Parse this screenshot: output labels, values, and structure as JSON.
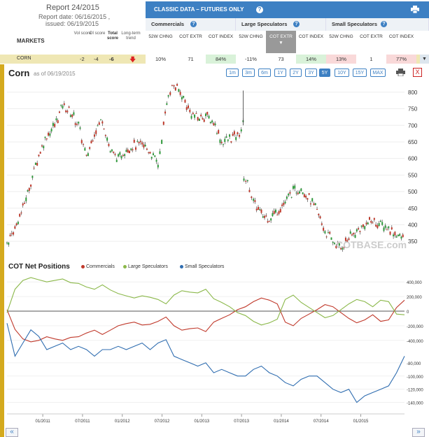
{
  "report": {
    "title": "Report 24/2015",
    "date_line": "Report date: 06/16/2015 ,",
    "issued_line": "issued: 06/19/2015"
  },
  "left_headers": {
    "markets": "MARKETS",
    "vol": "Vol score",
    "oi": "OI score",
    "total": "Total score",
    "trend": "Long-term trend"
  },
  "cot_header": {
    "title": "CLASSIC DATA – FUTURES ONLY",
    "groups": [
      "Commercials",
      "Large Speculators",
      "Small Speculators"
    ],
    "sub_headers": [
      "52W CHNG",
      "COT EXTR",
      "COT INDEX",
      "52W CHNG",
      "COT EXTR",
      "COT INDEX",
      "52W CHNG",
      "COT EXTR",
      "COT INDEX"
    ]
  },
  "corn_row": {
    "name": "CORN",
    "vol": "-2",
    "oi": "-4",
    "total": "-6",
    "values": [
      "10%",
      "71",
      "84%",
      "-11%",
      "73",
      "14%",
      "13%",
      "1",
      "77%"
    ],
    "cell_colors": [
      "#ffffff",
      "#ffffff",
      "#d9f2d9",
      "#ffffff",
      "#ffffff",
      "#d9f2d9",
      "#f9d9d9",
      "#ffffff",
      "#f9d9d9"
    ]
  },
  "chart_header": {
    "title": "Corn",
    "subtitle": "as of 06/19/2015",
    "zoom_buttons": [
      "1m",
      "3m",
      "6m",
      "1Y",
      "2Y",
      "3Y",
      "5Y",
      "10Y",
      "15Y",
      "MAX"
    ],
    "active_zoom": "5Y",
    "close_label": "X"
  },
  "cot_net": {
    "title": "COT Net Positions",
    "legend": [
      {
        "name": "Commercials",
        "color": "#c0392b"
      },
      {
        "name": "Large Speculators",
        "color": "#8bb84a"
      },
      {
        "name": "Small Speculators",
        "color": "#2f6db0"
      }
    ]
  },
  "nav": {
    "left": "«",
    "right": "»"
  },
  "watermark": "COTBASE.com",
  "chart_data": [
    {
      "type": "candlestick",
      "title": "Corn",
      "subtitle": "as of 06/19/2015",
      "y_ticks": [
        350,
        400,
        450,
        500,
        550,
        600,
        650,
        700,
        750,
        800
      ],
      "ylim": [
        325,
        825
      ],
      "x_ticks": [
        "01/2011",
        "07/2011",
        "01/2012",
        "07/2012",
        "01/2013",
        "07/2013",
        "01/2014",
        "07/2014",
        "01/2015"
      ],
      "x_range": [
        2010.55,
        2015.55
      ],
      "series": [
        {
          "name": "Corn close",
          "x": [
            2010.55,
            2010.65,
            2010.75,
            2010.85,
            2010.95,
            2011.05,
            2011.15,
            2011.25,
            2011.35,
            2011.45,
            2011.55,
            2011.65,
            2011.75,
            2011.85,
            2011.95,
            2012.05,
            2012.15,
            2012.25,
            2012.35,
            2012.45,
            2012.52,
            2012.58,
            2012.65,
            2012.75,
            2012.85,
            2012.95,
            2013.05,
            2013.15,
            2013.25,
            2013.35,
            2013.45,
            2013.52,
            2013.53,
            2013.6,
            2013.65,
            2013.75,
            2013.85,
            2013.95,
            2014.05,
            2014.15,
            2014.25,
            2014.35,
            2014.45,
            2014.55,
            2014.65,
            2014.75,
            2014.85,
            2014.95,
            2015.05,
            2015.15,
            2015.25,
            2015.35,
            2015.45,
            2015.55
          ],
          "values": [
            345,
            390,
            450,
            530,
            610,
            670,
            700,
            760,
            740,
            700,
            600,
            680,
            720,
            620,
            600,
            630,
            640,
            640,
            620,
            580,
            700,
            800,
            820,
            790,
            740,
            720,
            730,
            710,
            650,
            660,
            670,
            700,
            545,
            510,
            470,
            430,
            420,
            440,
            470,
            500,
            510,
            480,
            440,
            380,
            350,
            330,
            360,
            380,
            400,
            410,
            400,
            390,
            370,
            355
          ]
        }
      ]
    },
    {
      "type": "line",
      "title": "COT Net Positions",
      "y_ticks": [
        -400000,
        -200000,
        0,
        200000,
        400000
      ],
      "y_tick_labels": [
        "-400,000",
        "-200,000",
        "0",
        "200,000",
        "400,000"
      ],
      "ylim": [
        -450000,
        450000
      ],
      "x_range": [
        2010.55,
        2015.55
      ],
      "x": [
        2010.55,
        2010.65,
        2010.75,
        2010.85,
        2010.95,
        2011.05,
        2011.15,
        2011.25,
        2011.35,
        2011.45,
        2011.55,
        2011.65,
        2011.75,
        2011.85,
        2011.95,
        2012.05,
        2012.15,
        2012.25,
        2012.35,
        2012.45,
        2012.55,
        2012.65,
        2012.75,
        2012.85,
        2012.95,
        2013.05,
        2013.15,
        2013.25,
        2013.35,
        2013.45,
        2013.55,
        2013.65,
        2013.75,
        2013.85,
        2013.95,
        2014.05,
        2014.15,
        2014.25,
        2014.35,
        2014.45,
        2014.55,
        2014.65,
        2014.75,
        2014.85,
        2014.95,
        2015.05,
        2015.15,
        2015.25,
        2015.35,
        2015.45,
        2015.55
      ],
      "series": [
        {
          "name": "Commercials",
          "values": [
            20000,
            -250000,
            -380000,
            -420000,
            -400000,
            -350000,
            -380000,
            -400000,
            -360000,
            -350000,
            -300000,
            -260000,
            -320000,
            -260000,
            -200000,
            -170000,
            -150000,
            -190000,
            -180000,
            -140000,
            -80000,
            -200000,
            -260000,
            -240000,
            -230000,
            -280000,
            -150000,
            -100000,
            -50000,
            20000,
            60000,
            130000,
            180000,
            150000,
            100000,
            -150000,
            -200000,
            -100000,
            -40000,
            20000,
            90000,
            60000,
            -20000,
            -100000,
            -160000,
            -120000,
            -50000,
            -140000,
            -120000,
            50000,
            150000
          ]
        },
        {
          "name": "Large Speculators",
          "values": [
            -20000,
            300000,
            420000,
            460000,
            430000,
            400000,
            420000,
            440000,
            390000,
            380000,
            330000,
            300000,
            360000,
            290000,
            240000,
            210000,
            180000,
            210000,
            190000,
            160000,
            100000,
            220000,
            280000,
            260000,
            250000,
            300000,
            170000,
            120000,
            60000,
            -20000,
            -60000,
            -140000,
            -190000,
            -160000,
            -110000,
            160000,
            220000,
            120000,
            50000,
            -20000,
            -90000,
            -60000,
            20000,
            100000,
            160000,
            130000,
            60000,
            150000,
            130000,
            -40000,
            -50000
          ]
        },
        {
          "name": "Small Speculators",
          "values": [
            -20000,
            -70000,
            -50000,
            -30000,
            -40000,
            -60000,
            -55000,
            -50000,
            -60000,
            -55000,
            -60000,
            -70000,
            -60000,
            -60000,
            -55000,
            -60000,
            -55000,
            -50000,
            -60000,
            -50000,
            -45000,
            -70000,
            -75000,
            -80000,
            -85000,
            -80000,
            -95000,
            -90000,
            -95000,
            -100000,
            -100000,
            -90000,
            -85000,
            -95000,
            -100000,
            -110000,
            -115000,
            -105000,
            -100000,
            -100000,
            -110000,
            -120000,
            -125000,
            -120000,
            -140000,
            -130000,
            -125000,
            -120000,
            -115000,
            -95000,
            -70000
          ]
        }
      ]
    },
    {
      "type": "line",
      "series_ref": "Small Speculators",
      "y_ticks": [
        -140000,
        -120000,
        -100000,
        -80000
      ],
      "y_tick_labels": [
        "-140,000",
        "-120,000",
        "-100,000",
        "-80,000"
      ],
      "ylim": [
        -150000,
        -60000
      ]
    }
  ]
}
